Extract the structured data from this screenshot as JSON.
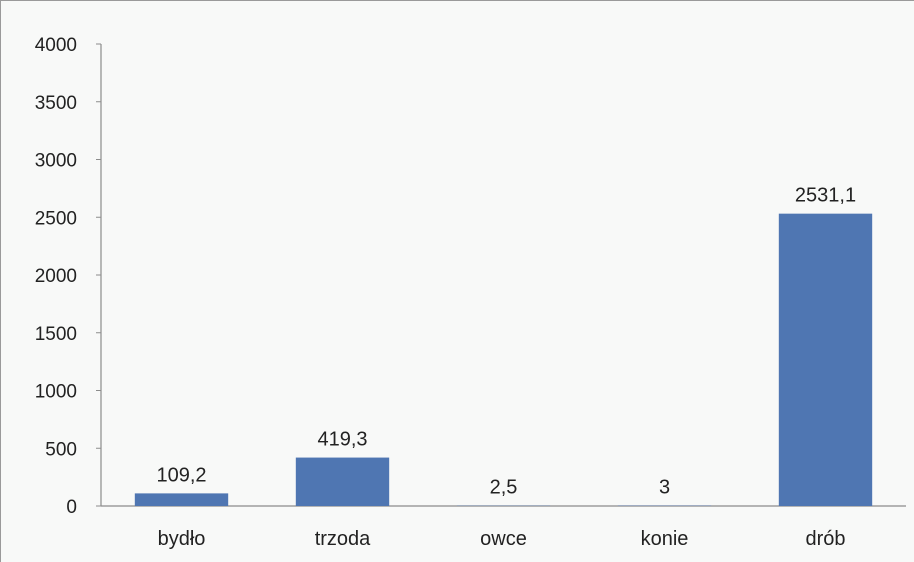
{
  "chart_data": {
    "type": "bar",
    "categories": [
      "bydło",
      "trzoda",
      "owce",
      "konie",
      "drób"
    ],
    "values": [
      109.2,
      419.3,
      2.5,
      3,
      2531.1
    ],
    "data_labels": [
      "109,2",
      "419,3",
      "2,5",
      "3",
      "2531,1"
    ],
    "title": "",
    "xlabel": "",
    "ylabel": "",
    "ylim": [
      0,
      4000
    ],
    "yticks": [
      0,
      500,
      1000,
      1500,
      2000,
      2500,
      3000,
      3500,
      4000
    ],
    "grid": false,
    "legend": "none",
    "bar_color": "#4f76b2"
  }
}
